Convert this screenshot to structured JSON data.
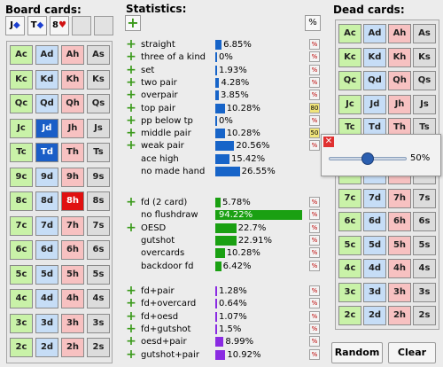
{
  "titles": {
    "board": "Board cards:",
    "stats": "Statistics:",
    "dead": "Dead cards:"
  },
  "board_slots": [
    {
      "rank": "J",
      "suit": "◆",
      "color": "blue"
    },
    {
      "rank": "T",
      "suit": "◆",
      "color": "blue"
    },
    {
      "rank": "8",
      "suit": "♥",
      "color": "red"
    },
    {
      "rank": "",
      "suit": "",
      "color": "empty"
    },
    {
      "rank": "",
      "suit": "",
      "color": "empty"
    }
  ],
  "ranks": [
    "A",
    "K",
    "Q",
    "J",
    "T",
    "9",
    "8",
    "7",
    "6",
    "5",
    "4",
    "3",
    "2"
  ],
  "suits": [
    "c",
    "d",
    "h",
    "s"
  ],
  "board_selected": {
    "Jd": "blue",
    "Td": "blue",
    "8h": "red"
  },
  "stats_percent_button": "%",
  "stats_groups": [
    [
      {
        "label": "straight",
        "value": "6.85%",
        "pct": 6.85,
        "btn": "%"
      },
      {
        "label": "three of a kind",
        "value": "0%",
        "pct": 0,
        "btn": "%"
      },
      {
        "label": "set",
        "value": "1.93%",
        "pct": 1.93,
        "btn": "%"
      },
      {
        "label": "two pair",
        "value": "4.28%",
        "pct": 4.28,
        "btn": "%"
      },
      {
        "label": "overpair",
        "value": "3.85%",
        "pct": 3.85,
        "btn": "%"
      },
      {
        "label": "top pair",
        "value": "10.28%",
        "pct": 10.28,
        "btn": "80",
        "yellow": true
      },
      {
        "label": "pp below tp",
        "value": "0%",
        "pct": 0,
        "btn": "%"
      },
      {
        "label": "middle pair",
        "value": "10.28%",
        "pct": 10.28,
        "btn": "50",
        "yellow": true
      },
      {
        "label": "weak pair",
        "value": "20.56%",
        "pct": 20.56,
        "btn": "%"
      },
      {
        "label": "ace high",
        "value": "15.42%",
        "pct": 15.42,
        "btn": "",
        "noplus": true
      },
      {
        "label": "no made hand",
        "value": "26.55%",
        "pct": 26.55,
        "btn": "",
        "noplus": true
      }
    ],
    [
      {
        "label": "fd (2 card)",
        "value": "5.78%",
        "pct": 5.78,
        "btn": "%"
      },
      {
        "label": "no flushdraw",
        "value": "94.22%",
        "pct": 94.22,
        "btn": "%",
        "noplus": true,
        "white": true
      },
      {
        "label": "OESD",
        "value": "22.7%",
        "pct": 22.7,
        "btn": "%"
      },
      {
        "label": "gutshot",
        "value": "22.91%",
        "pct": 22.91,
        "btn": "%",
        "noplus": true
      },
      {
        "label": "overcards",
        "value": "10.28%",
        "pct": 10.28,
        "btn": "%",
        "noplus": true
      },
      {
        "label": "backdoor fd",
        "value": "6.42%",
        "pct": 6.42,
        "btn": "%",
        "noplus": true
      }
    ],
    [
      {
        "label": "fd+pair",
        "value": "1.28%",
        "pct": 1.28,
        "btn": "%"
      },
      {
        "label": "fd+overcard",
        "value": "0.64%",
        "pct": 0.64,
        "btn": "%"
      },
      {
        "label": "fd+oesd",
        "value": "1.07%",
        "pct": 1.07,
        "btn": "%"
      },
      {
        "label": "fd+gutshot",
        "value": "1.5%",
        "pct": 1.5,
        "btn": "%"
      },
      {
        "label": "oesd+pair",
        "value": "8.99%",
        "pct": 8.99,
        "btn": "%"
      },
      {
        "label": "gutshot+pair",
        "value": "10.92%",
        "pct": 10.92,
        "btn": "%"
      }
    ]
  ],
  "bar_colors": [
    "#1764c8",
    "#1aa012",
    "#8a2be2"
  ],
  "popup": {
    "close": "✕",
    "value": "50%",
    "slider_fraction": 0.5
  },
  "buttons": {
    "random": "Random",
    "clear": "Clear"
  }
}
